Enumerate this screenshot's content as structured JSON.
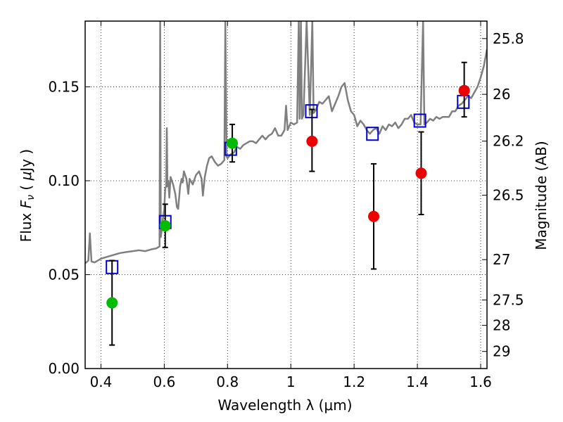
{
  "chart_data": {
    "type": "scatter",
    "xlabel": "Wavelength  λ (μm)",
    "ylabel_parts": [
      "Flux  ",
      "F",
      "ν",
      "  ( ",
      "μ",
      "Jy )"
    ],
    "ylabel_right": "Magnitude (AB)",
    "xlim": [
      0.35,
      1.62
    ],
    "ylim": [
      0.0,
      0.185
    ],
    "x_ticks": [
      0.4,
      0.6,
      0.8,
      1.0,
      1.2,
      1.4,
      1.6
    ],
    "x_tick_labels": [
      "0.4",
      "0.6",
      "0.8",
      "1",
      "1.2",
      "1.4",
      "1.6"
    ],
    "y_ticks": [
      0.0,
      0.05,
      0.1,
      0.15
    ],
    "y_tick_labels": [
      "0.00",
      "0.05",
      "0.10",
      "0.15"
    ],
    "right_ticks": [
      {
        "flux": 0.1757,
        "label": "25.8"
      },
      {
        "flux": 0.146,
        "label": "26"
      },
      {
        "flux": 0.1211,
        "label": "26.2"
      },
      {
        "flux": 0.0923,
        "label": "26.5"
      },
      {
        "flux": 0.058,
        "label": "27"
      },
      {
        "flux": 0.0365,
        "label": "27.5"
      },
      {
        "flux": 0.023,
        "label": "28"
      },
      {
        "flux": 0.0091,
        "label": "29"
      }
    ],
    "grid": true,
    "colors": {
      "spectrum": "#7f7f7f",
      "model": "#0000cc",
      "green_points": "#00bb00",
      "red_points": "#ee0000",
      "errorbar": "#000000"
    },
    "series": [
      {
        "type": "line",
        "points": [
          [
            0.35,
            0.056
          ],
          [
            0.36,
            0.0575
          ],
          [
            0.365,
            0.072
          ],
          [
            0.37,
            0.057
          ],
          [
            0.38,
            0.0565
          ],
          [
            0.4,
            0.0585
          ],
          [
            0.42,
            0.0595
          ],
          [
            0.44,
            0.0605
          ],
          [
            0.46,
            0.0615
          ],
          [
            0.48,
            0.062
          ],
          [
            0.5,
            0.0625
          ],
          [
            0.52,
            0.063
          ],
          [
            0.54,
            0.0625
          ],
          [
            0.56,
            0.0635
          ],
          [
            0.575,
            0.064
          ],
          [
            0.585,
            0.065
          ],
          [
            0.587,
            0.185
          ],
          [
            0.589,
            0.07
          ],
          [
            0.592,
            0.074
          ],
          [
            0.596,
            0.08
          ],
          [
            0.6,
            0.085
          ],
          [
            0.603,
            0.096
          ],
          [
            0.606,
            0.097
          ],
          [
            0.608,
            0.128
          ],
          [
            0.61,
            0.097
          ],
          [
            0.613,
            0.1
          ],
          [
            0.616,
            0.091
          ],
          [
            0.62,
            0.102
          ],
          [
            0.628,
            0.098
          ],
          [
            0.635,
            0.093
          ],
          [
            0.64,
            0.086
          ],
          [
            0.644,
            0.085
          ],
          [
            0.65,
            0.097
          ],
          [
            0.655,
            0.101
          ],
          [
            0.658,
            0.099
          ],
          [
            0.662,
            0.105
          ],
          [
            0.67,
            0.101
          ],
          [
            0.676,
            0.093
          ],
          [
            0.68,
            0.101
          ],
          [
            0.69,
            0.098
          ],
          [
            0.7,
            0.103
          ],
          [
            0.71,
            0.105
          ],
          [
            0.718,
            0.101
          ],
          [
            0.722,
            0.092
          ],
          [
            0.728,
            0.102
          ],
          [
            0.735,
            0.108
          ],
          [
            0.742,
            0.112
          ],
          [
            0.75,
            0.113
          ],
          [
            0.76,
            0.11
          ],
          [
            0.77,
            0.108
          ],
          [
            0.78,
            0.109
          ],
          [
            0.79,
            0.111
          ],
          [
            0.793,
            0.185
          ],
          [
            0.797,
            0.113
          ],
          [
            0.8,
            0.112
          ],
          [
            0.81,
            0.114
          ],
          [
            0.82,
            0.115
          ],
          [
            0.83,
            0.118
          ],
          [
            0.84,
            0.117
          ],
          [
            0.85,
            0.119
          ],
          [
            0.86,
            0.12
          ],
          [
            0.87,
            0.121
          ],
          [
            0.88,
            0.121
          ],
          [
            0.89,
            0.12
          ],
          [
            0.9,
            0.122
          ],
          [
            0.91,
            0.124
          ],
          [
            0.92,
            0.122
          ],
          [
            0.93,
            0.124
          ],
          [
            0.94,
            0.125
          ],
          [
            0.95,
            0.128
          ],
          [
            0.96,
            0.124
          ],
          [
            0.97,
            0.124
          ],
          [
            0.98,
            0.127
          ],
          [
            0.985,
            0.14
          ],
          [
            0.99,
            0.127
          ],
          [
            1.0,
            0.131
          ],
          [
            1.01,
            0.13
          ],
          [
            1.02,
            0.131
          ],
          [
            1.025,
            0.185
          ],
          [
            1.028,
            0.133
          ],
          [
            1.032,
            0.185
          ],
          [
            1.035,
            0.133
          ],
          [
            1.04,
            0.135
          ],
          [
            1.05,
            0.185
          ],
          [
            1.06,
            0.135
          ],
          [
            1.068,
            0.185
          ],
          [
            1.072,
            0.136
          ],
          [
            1.08,
            0.138
          ],
          [
            1.09,
            0.142
          ],
          [
            1.1,
            0.141
          ],
          [
            1.11,
            0.143
          ],
          [
            1.12,
            0.145
          ],
          [
            1.13,
            0.137
          ],
          [
            1.14,
            0.141
          ],
          [
            1.15,
            0.145
          ],
          [
            1.16,
            0.15
          ],
          [
            1.17,
            0.152
          ],
          [
            1.18,
            0.143
          ],
          [
            1.19,
            0.137
          ],
          [
            1.2,
            0.135
          ],
          [
            1.21,
            0.129
          ],
          [
            1.22,
            0.132
          ],
          [
            1.23,
            0.13
          ],
          [
            1.24,
            0.127
          ],
          [
            1.25,
            0.125
          ],
          [
            1.26,
            0.127
          ],
          [
            1.27,
            0.128
          ],
          [
            1.28,
            0.125
          ],
          [
            1.29,
            0.129
          ],
          [
            1.3,
            0.127
          ],
          [
            1.31,
            0.13
          ],
          [
            1.32,
            0.129
          ],
          [
            1.33,
            0.131
          ],
          [
            1.34,
            0.128
          ],
          [
            1.35,
            0.13
          ],
          [
            1.36,
            0.133
          ],
          [
            1.37,
            0.133
          ],
          [
            1.38,
            0.135
          ],
          [
            1.39,
            0.131
          ],
          [
            1.4,
            0.13
          ],
          [
            1.41,
            0.13
          ],
          [
            1.418,
            0.185
          ],
          [
            1.422,
            0.13
          ],
          [
            1.43,
            0.131
          ],
          [
            1.44,
            0.133
          ],
          [
            1.45,
            0.132
          ],
          [
            1.46,
            0.134
          ],
          [
            1.47,
            0.133
          ],
          [
            1.48,
            0.134
          ],
          [
            1.49,
            0.134
          ],
          [
            1.5,
            0.134
          ],
          [
            1.51,
            0.137
          ],
          [
            1.52,
            0.137
          ],
          [
            1.53,
            0.14
          ],
          [
            1.54,
            0.141
          ],
          [
            1.55,
            0.143
          ],
          [
            1.56,
            0.145
          ],
          [
            1.57,
            0.144
          ],
          [
            1.58,
            0.147
          ],
          [
            1.59,
            0.15
          ],
          [
            1.6,
            0.155
          ],
          [
            1.61,
            0.161
          ],
          [
            1.62,
            0.17
          ]
        ]
      },
      {
        "type": "open-square",
        "points": [
          [
            0.435,
            0.054
          ],
          [
            0.603,
            0.078
          ],
          [
            0.81,
            0.117
          ],
          [
            1.065,
            0.137
          ],
          [
            1.258,
            0.125
          ],
          [
            1.408,
            0.132
          ],
          [
            1.545,
            0.142
          ]
        ]
      },
      {
        "type": "filled-circle",
        "points": [
          {
            "x": 0.435,
            "y": 0.035,
            "err": [
              0.0125,
              0.0575
            ]
          },
          {
            "x": 0.603,
            "y": 0.076,
            "err": [
              0.0645,
              0.0875
            ]
          },
          {
            "x": 0.815,
            "y": 0.12,
            "err": [
              0.11,
              0.13
            ]
          }
        ]
      },
      {
        "type": "filled-circle",
        "points": [
          {
            "x": 1.067,
            "y": 0.121,
            "err": [
              0.105,
              0.138
            ]
          },
          {
            "x": 1.262,
            "y": 0.081,
            "err": [
              0.053,
              0.109
            ]
          },
          {
            "x": 1.412,
            "y": 0.104,
            "err": [
              0.082,
              0.126
            ]
          },
          {
            "x": 1.548,
            "y": 0.148,
            "err": [
              0.134,
              0.163
            ]
          }
        ]
      }
    ]
  }
}
